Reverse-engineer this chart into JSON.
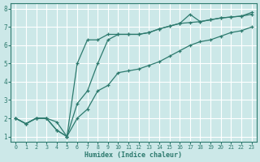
{
  "xlabel": "Humidex (Indice chaleur)",
  "bg_color": "#cce8e8",
  "grid_color": "#ffffff",
  "line_color": "#2d7a6e",
  "xlim": [
    -0.5,
    23.5
  ],
  "ylim": [
    0.7,
    8.3
  ],
  "xticks": [
    0,
    1,
    2,
    3,
    4,
    5,
    6,
    7,
    8,
    9,
    10,
    11,
    12,
    13,
    14,
    15,
    16,
    17,
    18,
    19,
    20,
    21,
    22,
    23
  ],
  "yticks": [
    1,
    2,
    3,
    4,
    5,
    6,
    7,
    8
  ],
  "line1_x": [
    0,
    1,
    2,
    3,
    4,
    5,
    6,
    7,
    8,
    9,
    10,
    11,
    12,
    13,
    14,
    15,
    16,
    17,
    18,
    19,
    20,
    21,
    22,
    23
  ],
  "line1_y": [
    2.0,
    1.7,
    2.0,
    2.0,
    1.8,
    1.0,
    2.0,
    2.5,
    3.5,
    3.8,
    4.5,
    4.6,
    4.7,
    4.9,
    5.1,
    5.4,
    5.7,
    6.0,
    6.2,
    6.3,
    6.5,
    6.7,
    6.8,
    7.0
  ],
  "line2_x": [
    0,
    1,
    2,
    3,
    4,
    5,
    6,
    7,
    8,
    9,
    10,
    11,
    12,
    13,
    14,
    15,
    16,
    17,
    18,
    19,
    20,
    21,
    22,
    23
  ],
  "line2_y": [
    2.0,
    1.7,
    2.0,
    2.0,
    1.35,
    1.0,
    2.8,
    3.5,
    5.0,
    6.3,
    6.6,
    6.6,
    6.6,
    6.7,
    6.9,
    7.05,
    7.2,
    7.25,
    7.3,
    7.4,
    7.5,
    7.55,
    7.6,
    7.7
  ],
  "line3_x": [
    0,
    1,
    2,
    3,
    4,
    5,
    6,
    7,
    8,
    9,
    10,
    11,
    12,
    13,
    14,
    15,
    16,
    17,
    18,
    19,
    20,
    21,
    22,
    23
  ],
  "line3_y": [
    2.0,
    1.7,
    2.0,
    2.0,
    1.35,
    1.0,
    5.0,
    6.3,
    6.3,
    6.6,
    6.6,
    6.6,
    6.6,
    6.7,
    6.9,
    7.05,
    7.2,
    7.7,
    7.3,
    7.4,
    7.5,
    7.55,
    7.6,
    7.8
  ]
}
